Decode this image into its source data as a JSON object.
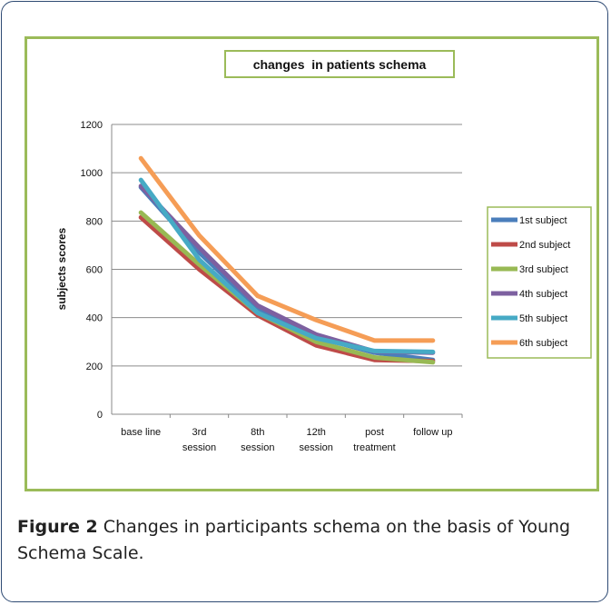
{
  "caption": {
    "label": "Figure 2",
    "text": " Changes in participants schema on the basis of Young Schema Scale."
  },
  "chart_data": {
    "type": "line",
    "title": "changes  in patients schema",
    "xlabel": "",
    "ylabel": "subjects scores",
    "ylim": [
      0,
      1200
    ],
    "yticks": [
      0,
      200,
      400,
      600,
      800,
      1000,
      1200
    ],
    "categories": [
      [
        "base line"
      ],
      [
        "3rd",
        "session"
      ],
      [
        "8th",
        "session"
      ],
      [
        "12th",
        "session"
      ],
      [
        "post",
        "treatment"
      ],
      [
        "follow up"
      ]
    ],
    "grid": true,
    "legend_position": "right",
    "series": [
      {
        "name": "1st subject",
        "color": "#4a7ebb",
        "values": [
          940,
          670,
          440,
          320,
          255,
          225
        ]
      },
      {
        "name": "2nd subject",
        "color": "#be4b48",
        "values": [
          815,
          600,
          410,
          285,
          225,
          220
        ]
      },
      {
        "name": "3rd subject",
        "color": "#98b954",
        "values": [
          835,
          620,
          420,
          300,
          235,
          215
        ]
      },
      {
        "name": "4th subject",
        "color": "#7d60a0",
        "values": [
          945,
          690,
          450,
          330,
          260,
          255
        ]
      },
      {
        "name": "5th subject",
        "color": "#46aac5",
        "values": [
          970,
          640,
          420,
          315,
          262,
          258
        ]
      },
      {
        "name": "6th subject",
        "color": "#f59d56",
        "values": [
          1060,
          740,
          490,
          390,
          305,
          305
        ]
      }
    ]
  }
}
